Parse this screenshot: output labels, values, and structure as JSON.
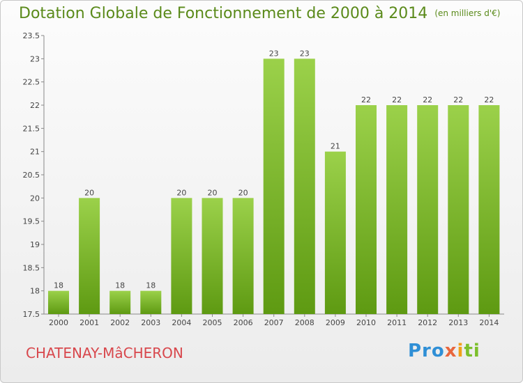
{
  "chart_data": {
    "type": "bar",
    "title": "Dotation Globale de Fonctionnement de 2000 à 2014",
    "unit_note": "(en milliers d'€)",
    "categories": [
      "2000",
      "2001",
      "2002",
      "2003",
      "2004",
      "2005",
      "2006",
      "2007",
      "2008",
      "2009",
      "2010",
      "2011",
      "2012",
      "2013",
      "2014"
    ],
    "values": [
      18,
      20,
      18,
      18,
      20,
      20,
      20,
      23,
      23,
      21,
      22,
      22,
      22,
      22,
      22
    ],
    "value_labels": [
      "18",
      "20",
      "18",
      "18",
      "20",
      "20",
      "20",
      "23",
      "23",
      "21",
      "22",
      "22",
      "22",
      "22",
      "22"
    ],
    "ylim": [
      17.5,
      23.5
    ],
    "yticks": [
      17.5,
      18,
      18.5,
      19,
      19.5,
      20,
      20.5,
      21,
      21.5,
      22,
      22.5,
      23,
      23.5
    ],
    "ytick_labels": [
      "17.5",
      "18",
      "18.5",
      "19",
      "19.5",
      "20",
      "20.5",
      "21",
      "21.5",
      "22",
      "22.5",
      "23",
      "23.5"
    ],
    "grid": false,
    "colors": {
      "bar_top": "#9bd14a",
      "bar_bottom": "#5e9a12",
      "title": "#5a8a1a"
    }
  },
  "footer": {
    "city": "CHATENAY-MâCHERON",
    "logo": [
      "Pro",
      "x",
      "i",
      "ti"
    ]
  }
}
